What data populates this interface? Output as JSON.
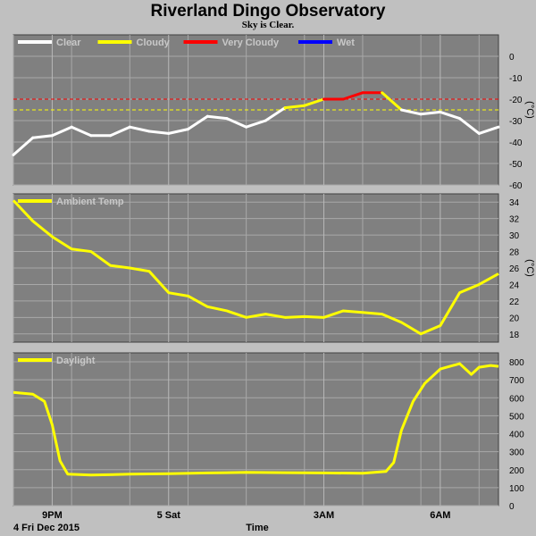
{
  "header": {
    "title": "Riverland Dingo Observatory",
    "subtitle": "Sky is Clear."
  },
  "footer": {
    "date_label": "4 Fri Dec 2015",
    "time_label": "Time"
  },
  "colors": {
    "panel_bg": "#808080",
    "page_bg": "#c0c0c0",
    "clear": "#ffffff",
    "cloudy": "#ffff00",
    "very_cloudy": "#ff0000",
    "wet": "#0000ff"
  },
  "chart_data": [
    {
      "type": "line",
      "panel": "sky",
      "unit": "(°C)",
      "ylim": [
        -60,
        10
      ],
      "yticks": [
        0,
        -10,
        -20,
        -30,
        -40,
        -50,
        -60
      ],
      "xticks": [
        "9PM",
        "5 Sat",
        "3AM",
        "6AM"
      ],
      "grid": true,
      "legend_position": "top-left",
      "legend": [
        {
          "name": "Clear",
          "color": "#ffffff"
        },
        {
          "name": "Cloudy",
          "color": "#ffff00"
        },
        {
          "name": "Very Cloudy",
          "color": "#ff0000"
        },
        {
          "name": "Wet",
          "color": "#0000ff"
        }
      ],
      "thresholds": [
        {
          "value": -20,
          "color": "#ff0000"
        },
        {
          "value": -25,
          "color": "#ffff00"
        }
      ],
      "x": [
        19.0,
        19.5,
        20.0,
        20.5,
        21.0,
        21.5,
        22.0,
        22.5,
        23.0,
        23.5,
        24.0,
        24.5,
        25.0,
        25.5,
        26.0,
        26.5,
        27.0,
        27.5,
        28.0,
        28.5,
        29.0,
        29.5,
        30.0,
        30.5,
        31.0,
        31.5
      ],
      "values": [
        -46,
        -38,
        -37,
        -33,
        -37,
        -37,
        -33,
        -35,
        -36,
        -34,
        -28,
        -29,
        -33,
        -30,
        -24,
        -23,
        -20,
        -20,
        -17,
        -17,
        -25,
        -27,
        -26,
        -29,
        -36,
        -33
      ]
    },
    {
      "type": "line",
      "panel": "ambient",
      "series_name": "Ambient Temp",
      "color": "#ffff00",
      "unit": "(°C)",
      "ylim": [
        17,
        35
      ],
      "yticks": [
        18,
        20,
        22,
        24,
        26,
        28,
        30,
        32,
        34
      ],
      "grid": true,
      "legend_position": "top-left",
      "x": [
        19.0,
        19.5,
        20.0,
        20.5,
        21.0,
        21.5,
        22.0,
        22.5,
        23.0,
        23.5,
        24.0,
        24.5,
        25.0,
        25.5,
        26.0,
        26.5,
        27.0,
        27.5,
        28.0,
        28.5,
        29.0,
        29.5,
        30.0,
        30.5,
        31.0,
        31.5
      ],
      "values": [
        34.2,
        31.7,
        29.8,
        28.3,
        28.0,
        26.3,
        26.0,
        25.6,
        23.0,
        22.6,
        21.3,
        20.8,
        20.0,
        20.4,
        20.0,
        20.1,
        20.0,
        20.8,
        20.6,
        20.4,
        19.4,
        18.0,
        19.0,
        23.0,
        24.0,
        25.3
      ]
    },
    {
      "type": "line",
      "panel": "daylight",
      "series_name": "Daylight",
      "color": "#ffff00",
      "ylim": [
        0,
        850
      ],
      "yticks": [
        0,
        100,
        200,
        300,
        400,
        500,
        600,
        700,
        800
      ],
      "grid": true,
      "legend_position": "top-left",
      "x": [
        19.0,
        19.5,
        19.8,
        20.0,
        20.2,
        20.4,
        21.0,
        22.0,
        23.0,
        24.0,
        25.0,
        26.0,
        27.0,
        28.0,
        28.6,
        28.8,
        29.0,
        29.3,
        29.6,
        30.0,
        30.5,
        30.8,
        31.0,
        31.3,
        31.5
      ],
      "values": [
        630,
        620,
        580,
        450,
        250,
        175,
        170,
        175,
        178,
        182,
        185,
        183,
        182,
        180,
        190,
        240,
        420,
        580,
        680,
        760,
        790,
        730,
        770,
        780,
        775
      ]
    }
  ]
}
